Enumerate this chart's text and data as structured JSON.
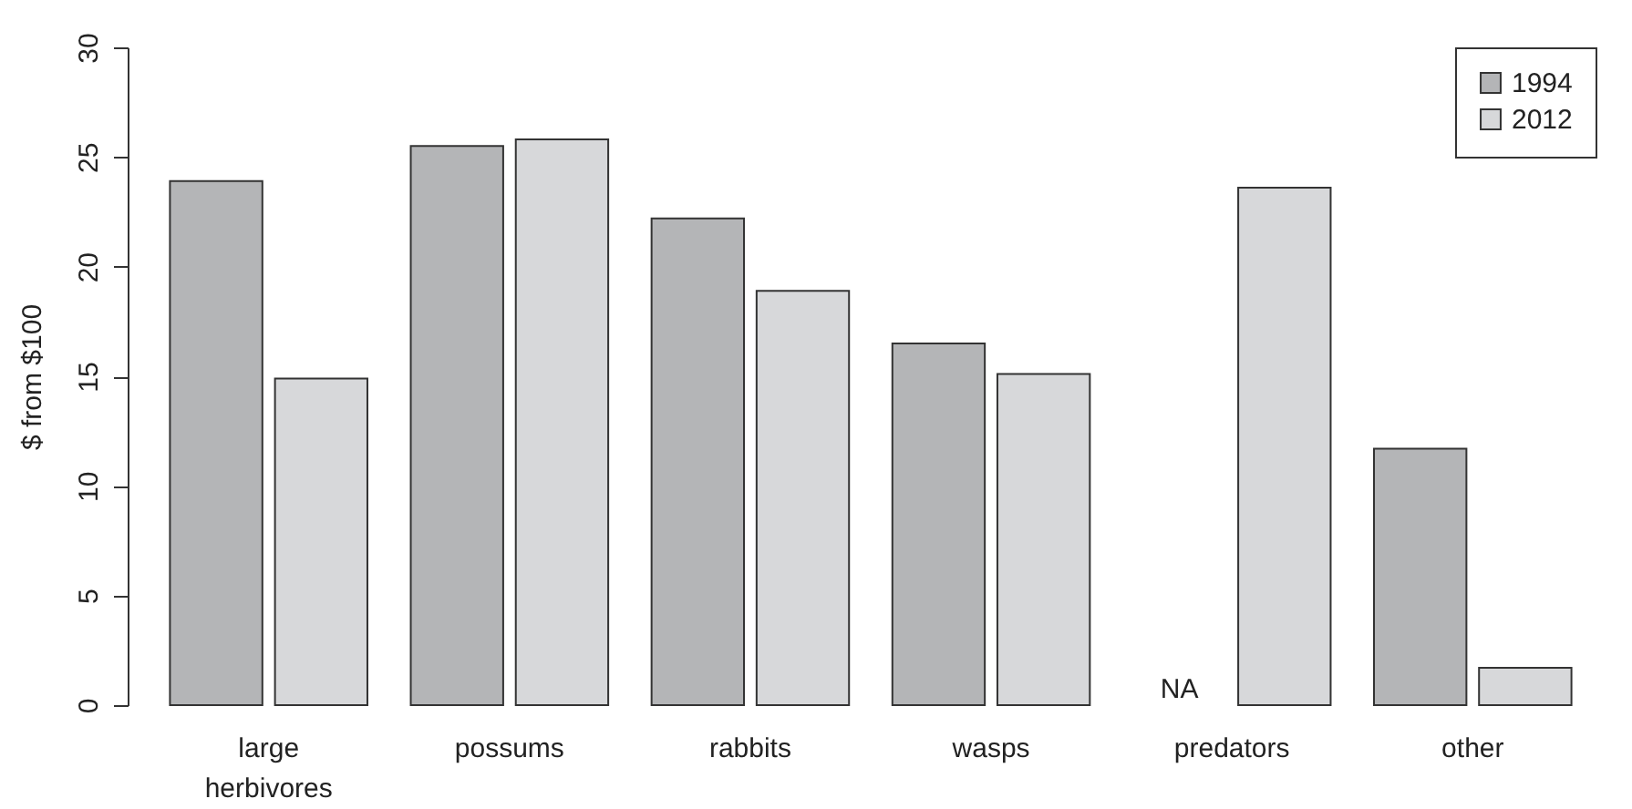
{
  "chart_data": {
    "type": "bar",
    "ylabel": "$ from $100",
    "categories": [
      "large herbivores",
      "possums",
      "rabbits",
      "wasps",
      "predators",
      "other"
    ],
    "series": [
      {
        "name": "1994",
        "color": "#b4b5b7",
        "values": [
          23.9,
          25.5,
          22.2,
          16.5,
          null,
          11.7
        ]
      },
      {
        "name": "2012",
        "color": "#d7d8da",
        "values": [
          14.9,
          25.8,
          18.9,
          15.1,
          23.6,
          1.7
        ]
      }
    ],
    "ylim": [
      0,
      30
    ],
    "yticks": [
      0,
      5,
      10,
      15,
      20,
      25,
      30
    ],
    "grid": false,
    "legend": "top right",
    "annotations": [
      "NA"
    ]
  }
}
